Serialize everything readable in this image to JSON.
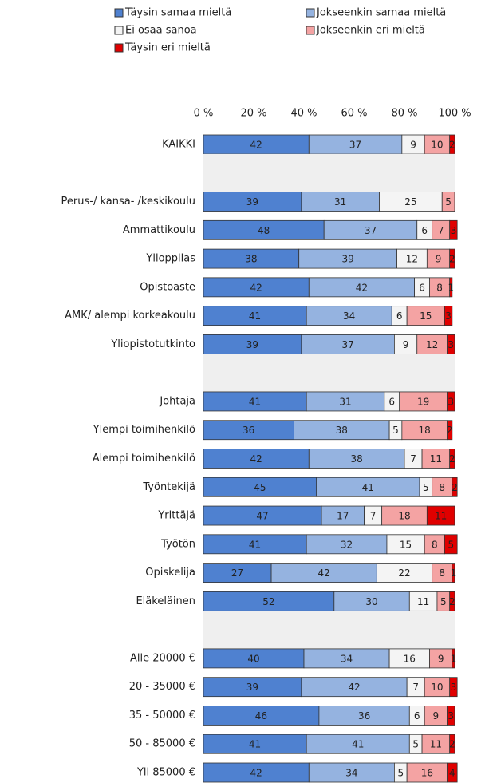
{
  "chart_data": {
    "type": "stacked-bar-horizontal",
    "categories": [
      "KAIKKI",
      null,
      "Perus-/ kansa- /keskikoulu",
      "Ammattikoulu",
      "Ylioppilas",
      "Opistoaste",
      "AMK/ alempi korkeakoulu",
      "Yliopistotutkinto",
      null,
      "Johtaja",
      "Ylempi toimihenkilö",
      "Alempi toimihenkilö",
      "Työntekijä",
      "Yrittäjä",
      "Työtön",
      "Opiskelija",
      "Eläkeläinen",
      null,
      "Alle 20000 €",
      "20 - 35000 €",
      "35 - 50000 €",
      "50 - 85000 €",
      "Yli 85000 €"
    ],
    "series": [
      {
        "name": "Täysin samaa mieltä",
        "color": "#4f81d0",
        "values": [
          42,
          null,
          39,
          48,
          38,
          42,
          41,
          39,
          null,
          41,
          36,
          42,
          45,
          47,
          41,
          27,
          52,
          null,
          40,
          39,
          46,
          41,
          42
        ]
      },
      {
        "name": "Jokseenkin samaa mieltä",
        "color": "#95b3e0",
        "values": [
          37,
          null,
          31,
          37,
          39,
          42,
          34,
          37,
          null,
          31,
          38,
          38,
          41,
          17,
          32,
          42,
          30,
          null,
          34,
          42,
          36,
          41,
          34
        ]
      },
      {
        "name": "Ei osaa sanoa",
        "color": "#f4f4f4",
        "values": [
          9,
          null,
          25,
          6,
          12,
          6,
          6,
          9,
          null,
          6,
          5,
          7,
          5,
          7,
          15,
          22,
          11,
          null,
          16,
          7,
          6,
          5,
          5
        ]
      },
      {
        "name": "Jokseenkin eri mieltä",
        "color": "#f4a3a3",
        "values": [
          10,
          null,
          5,
          7,
          9,
          8,
          15,
          12,
          null,
          19,
          18,
          11,
          8,
          18,
          8,
          8,
          5,
          null,
          9,
          10,
          9,
          11,
          16
        ]
      },
      {
        "name": "Täysin eri mieltä",
        "color": "#e00000",
        "values": [
          2,
          null,
          0,
          3,
          2,
          1,
          3,
          3,
          null,
          3,
          2,
          2,
          2,
          11,
          5,
          1,
          2,
          null,
          1,
          3,
          3,
          2,
          4
        ]
      }
    ],
    "xlim": [
      0,
      100
    ],
    "xticks": [
      {
        "value": 0,
        "label": "0 %"
      },
      {
        "value": 20,
        "label": "20 %"
      },
      {
        "value": 40,
        "label": "40 %"
      },
      {
        "value": 60,
        "label": "60 %"
      },
      {
        "value": 80,
        "label": "80 %"
      },
      {
        "value": 100,
        "label": "100 %"
      }
    ],
    "legend": "top"
  }
}
